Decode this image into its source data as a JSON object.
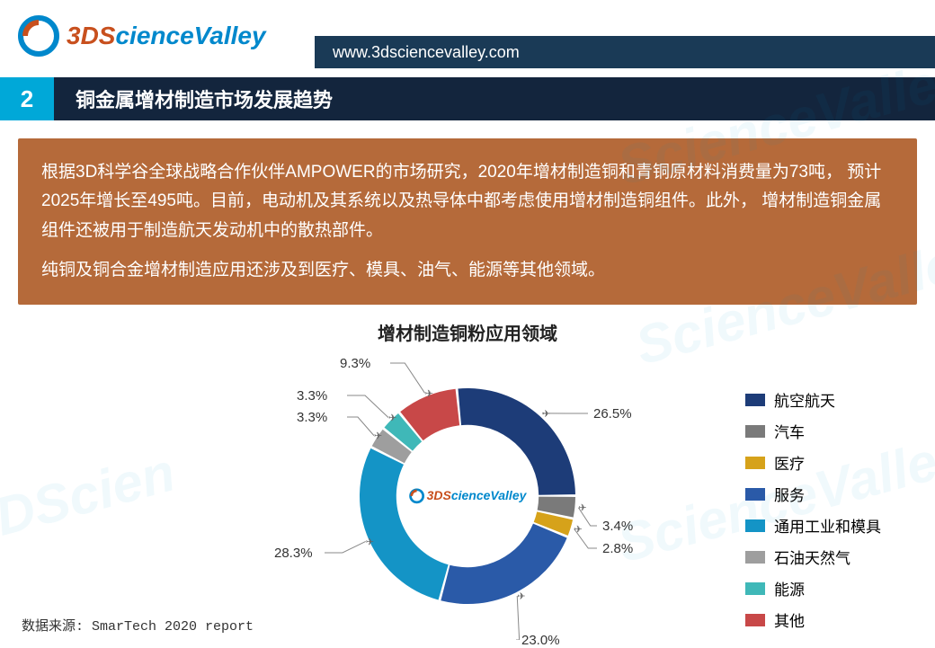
{
  "header": {
    "brand_part1": "3DS",
    "brand_part2": "cienceValley",
    "url": "www.3dsciencevalley.com"
  },
  "section": {
    "number": "2",
    "title": "铜金属增材制造市场发展趋势"
  },
  "description": {
    "p1": "根据3D科学谷全球战略合作伙伴AMPOWER的市场研究，2020年增材制造铜和青铜原材料消费量为73吨，  预计2025年增长至495吨。目前，电动机及其系统以及热导体中都考虑使用增材制造铜组件。此外，  增材制造铜金属组件还被用于制造航天发动机中的散热部件。",
    "p2": "纯铜及铜合金增材制造应用还涉及到医疗、模具、油气、能源等其他领域。"
  },
  "chart": {
    "title": "增材制造铜粉应用领域",
    "type": "donut",
    "inner_radius_ratio": 0.66,
    "background_color": "#ffffff",
    "slices": [
      {
        "label": "航空航天",
        "value": 26.5,
        "color": "#1d3c78",
        "callout": "26.5%"
      },
      {
        "label": "汽车",
        "value": 3.4,
        "color": "#7a7a7a",
        "callout": "3.4%"
      },
      {
        "label": "医疗",
        "value": 2.8,
        "color": "#d6a21a",
        "callout": "2.8%"
      },
      {
        "label": "服务",
        "value": 23.0,
        "color": "#2a5aa8",
        "callout": "23.0%"
      },
      {
        "label": "通用工业和模具",
        "value": 28.3,
        "color": "#1494c6",
        "callout": "28.3%"
      },
      {
        "label": "石油天然气",
        "value": 3.3,
        "color": "#9e9e9e",
        "callout": "3.3%"
      },
      {
        "label": "能源",
        "value": 3.3,
        "color": "#3fb8b8",
        "callout": "3.3%"
      },
      {
        "label": "其他",
        "value": 9.3,
        "color": "#c84848",
        "callout": "9.3%"
      }
    ],
    "legend_items": [
      {
        "label": "航空航天",
        "color": "#1d3c78"
      },
      {
        "label": "汽车",
        "color": "#7a7a7a"
      },
      {
        "label": "医疗",
        "color": "#d6a21a"
      },
      {
        "label": "服务",
        "color": "#2a5aa8"
      },
      {
        "label": "通用工业和模具",
        "color": "#1494c6"
      },
      {
        "label": "石油天然气",
        "color": "#9e9e9e"
      },
      {
        "label": "能源",
        "color": "#3fb8b8"
      },
      {
        "label": "其他",
        "color": "#c84848"
      }
    ],
    "center_logo": {
      "p1": "3DS",
      "p2": "cienceValley"
    },
    "label_fontsize": 15,
    "legend_fontsize": 17,
    "title_fontsize": 20
  },
  "source": "数据来源: SmarTech 2020 report"
}
